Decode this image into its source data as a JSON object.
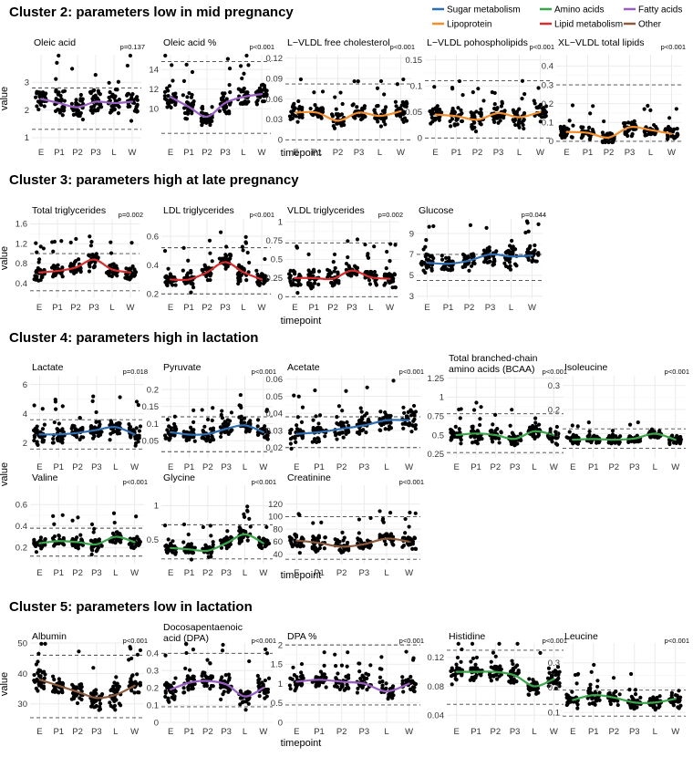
{
  "legend": [
    {
      "name": "Sugar metabolism",
      "color": "#2f6eb0"
    },
    {
      "name": "Amino acids",
      "color": "#3aa64a"
    },
    {
      "name": "Fatty acids",
      "color": "#9a5fc4"
    },
    {
      "name": "Lipoprotein",
      "color": "#f28e2b"
    },
    {
      "name": "Lipid metabolism",
      "color": "#d62e2e"
    },
    {
      "name": "Other",
      "color": "#8c5a3c"
    }
  ],
  "axis_labels": {
    "x": "timepoint",
    "y": "value"
  },
  "categories": [
    "E",
    "P1",
    "P2",
    "P3",
    "L",
    "W"
  ],
  "chart_data": [
    {
      "cluster": "Cluster 2: parameters low in mid pregnancy",
      "panels": [
        {
          "title": [
            "Oleic acid"
          ],
          "p": "p=0.137",
          "group": "Fatty acids",
          "ylim": [
            0.8,
            4.0
          ],
          "ticks": [
            1,
            2,
            3
          ],
          "hlines": [
            1.3,
            2.8
          ],
          "trend": [
            2.4,
            2.25,
            2.1,
            2.3,
            2.25,
            2.3
          ],
          "spread": 0.45
        },
        {
          "title": [
            "Oleic acid %"
          ],
          "p": "p<0.001",
          "group": "Fatty acids",
          "ylim": [
            6.5,
            15.5
          ],
          "ticks": [
            10,
            12,
            14
          ],
          "hlines": [
            7.5,
            14.8
          ],
          "trend": [
            11.2,
            10.2,
            9.2,
            10.6,
            11.2,
            11.5
          ],
          "spread": 1.1
        },
        {
          "title": [
            "L−VLDL free cholesterol"
          ],
          "p": "p<0.001",
          "group": "Lipoprotein",
          "ylim": [
            -0.005,
            0.125
          ],
          "ticks": [
            0.0,
            0.03,
            0.06,
            0.09,
            0.12
          ],
          "hlines": [
            0.0,
            0.082
          ],
          "trend": [
            0.04,
            0.04,
            0.028,
            0.04,
            0.035,
            0.042
          ],
          "spread": 0.013
        },
        {
          "title": [
            "L−VLDL pohospholipids"
          ],
          "p": "p<0.001",
          "group": "Lipoprotein",
          "ylim": [
            -0.01,
            0.16
          ],
          "ticks": [
            0.0,
            0.05,
            0.1,
            0.15
          ],
          "hlines": [
            0.0,
            0.11
          ],
          "trend": [
            0.045,
            0.042,
            0.035,
            0.048,
            0.04,
            0.05
          ],
          "spread": 0.018
        },
        {
          "title": [
            "XL−VLDL total lipids"
          ],
          "p": "p<0.001",
          "group": "Lipoprotein",
          "ylim": [
            -0.01,
            0.46
          ],
          "ticks": [
            0.0,
            0.1,
            0.2,
            0.3,
            0.4
          ],
          "hlines": [
            0.0,
            0.3
          ],
          "trend": [
            0.05,
            0.045,
            0.02,
            0.075,
            0.06,
            0.04
          ],
          "spread": 0.035
        }
      ]
    },
    {
      "cluster": "Cluster 3: parameters high at late pregnancy",
      "panels": [
        {
          "title": [
            "Total triglycerides"
          ],
          "p": "p=0.002",
          "group": "Lipid metabolism",
          "ylim": [
            0.1,
            1.7
          ],
          "ticks": [
            0.4,
            0.8,
            1.2,
            1.6
          ],
          "hlines": [
            0.25,
            1.0
          ],
          "trend": [
            0.62,
            0.65,
            0.72,
            0.88,
            0.68,
            0.62
          ],
          "spread": 0.15
        },
        {
          "title": [
            "LDL triglycerides"
          ],
          "p": "p<0.001",
          "group": "Lipid metabolism",
          "ylim": [
            0.17,
            0.72
          ],
          "ticks": [
            0.2,
            0.4,
            0.6
          ],
          "hlines": [
            0.2,
            0.52
          ],
          "trend": [
            0.3,
            0.3,
            0.35,
            0.42,
            0.35,
            0.3
          ],
          "spread": 0.06
        },
        {
          "title": [
            "VLDL triglycerides"
          ],
          "p": "p=0.002",
          "group": "Lipid metabolism",
          "ylim": [
            -0.02,
            1.04
          ],
          "ticks": [
            0.0,
            0.25,
            0.5,
            0.75,
            1.0
          ],
          "hlines": [
            0.0,
            0.72
          ],
          "trend": [
            0.25,
            0.25,
            0.24,
            0.35,
            0.26,
            0.24
          ],
          "spread": 0.12
        },
        {
          "title": [
            "Glucose"
          ],
          "p": "p=0.044",
          "group": "Sugar metabolism",
          "ylim": [
            2.8,
            10.4
          ],
          "ticks": [
            3,
            5,
            7,
            9
          ],
          "hlines": [
            4.5,
            7.0
          ],
          "trend": [
            6.2,
            6.1,
            6.4,
            7.0,
            6.8,
            6.9
          ],
          "spread": 0.9
        }
      ]
    },
    {
      "cluster": "Cluster 4:  parameters high in lactation",
      "panels": [
        {
          "title": [
            "Lactate"
          ],
          "p": "p=0.018",
          "group": "Sugar metabolism",
          "ylim": [
            1.0,
            6.6
          ],
          "ticks": [
            2,
            4,
            6
          ],
          "hlines": [
            1.6,
            3.6
          ],
          "trend": [
            2.6,
            2.6,
            2.7,
            2.9,
            3.1,
            2.6
          ],
          "spread": 0.6
        },
        {
          "title": [
            "Pyruvate"
          ],
          "p": "p<0.001",
          "group": "Sugar metabolism",
          "ylim": [
            0.0,
            0.24
          ],
          "ticks": [
            0.05,
            0.1,
            0.15,
            0.2
          ],
          "hlines": [
            0.018,
            0.12
          ],
          "trend": [
            0.075,
            0.068,
            0.07,
            0.085,
            0.095,
            0.075
          ],
          "spread": 0.022
        },
        {
          "title": [
            "Acetate"
          ],
          "p": "p<0.001",
          "group": "Sugar metabolism",
          "ylim": [
            0.014,
            0.062
          ],
          "ticks": [
            0.02,
            0.03,
            0.04,
            0.05,
            0.06
          ],
          "hlines": [
            0.02,
            0.038
          ],
          "trend": [
            0.028,
            0.029,
            0.031,
            0.033,
            0.036,
            0.036
          ],
          "spread": 0.006
        },
        {
          "title": [
            "Total  branched-chain",
            "amino acids (BCAA)"
          ],
          "p": "p<0.001",
          "group": "Amino acids",
          "ylim": [
            0.2,
            1.28
          ],
          "ticks": [
            0.25,
            0.5,
            0.75,
            1.0,
            1.25
          ],
          "hlines": [
            0.27,
            0.78
          ],
          "trend": [
            0.5,
            0.52,
            0.5,
            0.45,
            0.55,
            0.5
          ],
          "spread": 0.1
        },
        {
          "title": [
            "Isoleucine"
          ],
          "p": "p<0.001",
          "group": "Amino acids",
          "ylim": [
            0.0,
            0.34
          ],
          "ticks": [
            0.1,
            0.2,
            0.3
          ],
          "hlines": [
            0.04,
            0.12
          ],
          "trend": [
            0.075,
            0.078,
            0.075,
            0.08,
            0.1,
            0.075
          ],
          "spread": 0.018
        }
      ]
    },
    {
      "cluster": "",
      "panels": [
        {
          "title": [
            "Valine"
          ],
          "p": "p<0.001",
          "group": "Amino acids",
          "ylim": [
            0.05,
            0.78
          ],
          "ticks": [
            0.2,
            0.4,
            0.6
          ],
          "hlines": [
            0.12,
            0.38
          ],
          "trend": [
            0.24,
            0.26,
            0.25,
            0.23,
            0.3,
            0.25
          ],
          "spread": 0.06
        },
        {
          "title": [
            "Glycine"
          ],
          "p": "p<0.001",
          "group": "Amino acids",
          "ylim": [
            0.15,
            1.3
          ],
          "ticks": [
            0.5,
            1.0
          ],
          "hlines": [
            0.22,
            0.72
          ],
          "trend": [
            0.38,
            0.36,
            0.34,
            0.45,
            0.58,
            0.45
          ],
          "spread": 0.1
        },
        {
          "title": [
            "Creatinine"
          ],
          "p": "p<0.001",
          "group": "Other",
          "ylim": [
            25,
            150
          ],
          "ticks": [
            40,
            60,
            80,
            100,
            120
          ],
          "hlines": [
            32,
            100
          ],
          "trend": [
            62,
            58,
            52,
            56,
            65,
            60
          ],
          "spread": 12
        },
        {
          "title": [],
          "p": "",
          "group": "",
          "ylim": null
        },
        {
          "title": [],
          "p": "",
          "group": "",
          "ylim": null
        }
      ]
    },
    {
      "cluster": "Cluster 5: parameters low in lactation",
      "panels": [
        {
          "title": [
            "Albumin"
          ],
          "p": "p<0.001",
          "group": "Other",
          "ylim": [
            24,
            50
          ],
          "ticks": [
            30,
            40,
            50
          ],
          "hlines": [
            25.5,
            46
          ],
          "trend": [
            38,
            36,
            34,
            32,
            33,
            36
          ],
          "spread": 3.5
        },
        {
          "title": [
            "Docosapentaenoic",
            "acid (DPA)"
          ],
          "p": "p<0.001",
          "group": "Fatty acids",
          "ylim": [
            0.0,
            0.46
          ],
          "ticks": [
            0.0,
            0.1,
            0.2,
            0.3,
            0.4
          ],
          "hlines": [
            0.09,
            0.4
          ],
          "trend": [
            0.19,
            0.23,
            0.24,
            0.22,
            0.15,
            0.2
          ],
          "spread": 0.06
        },
        {
          "title": [
            "DPA %"
          ],
          "p": "p<0.001",
          "group": "Fatty acids",
          "ylim": [
            0.0,
            2.05
          ],
          "ticks": [
            0.0,
            0.5,
            1.0,
            1.5,
            2.0
          ],
          "hlines": [
            0.45,
            2.0
          ],
          "trend": [
            1.05,
            1.1,
            1.05,
            1.0,
            0.8,
            1.0
          ],
          "spread": 0.22
        },
        {
          "title": [
            "Histidine"
          ],
          "p": "p<0.001",
          "group": "Amino acids",
          "ylim": [
            0.03,
            0.14
          ],
          "ticks": [
            0.04,
            0.08,
            0.12
          ],
          "hlines": [
            0.055,
            0.13
          ],
          "trend": [
            0.1,
            0.1,
            0.1,
            0.095,
            0.08,
            0.09
          ],
          "spread": 0.012
        },
        {
          "title": [
            "Leucine"
          ],
          "p": "p<0.001",
          "group": "Amino acids",
          "ylim": [
            0.06,
            0.38
          ],
          "ticks": [
            0.1,
            0.2,
            0.3
          ],
          "hlines": [
            0.085,
            0.19
          ],
          "trend": [
            0.15,
            0.17,
            0.16,
            0.14,
            0.14,
            0.155
          ],
          "spread": 0.03
        }
      ]
    }
  ]
}
